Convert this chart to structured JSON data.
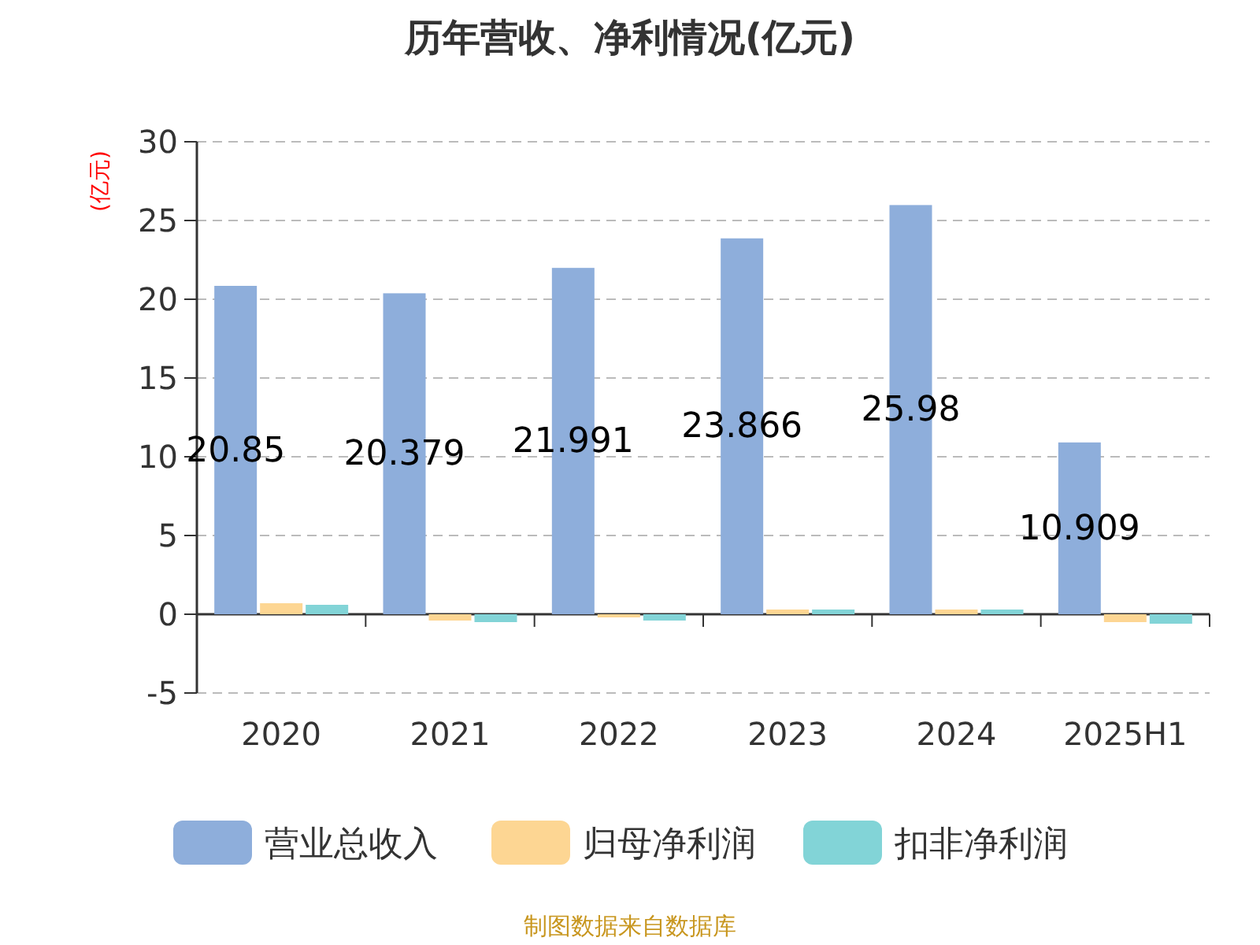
{
  "chart_data": {
    "type": "bar",
    "title": "历年营收、净利情况(亿元)",
    "ylabel": "(亿元)",
    "categories": [
      "2020",
      "2021",
      "2022",
      "2023",
      "2024",
      "2025H1"
    ],
    "series": [
      {
        "name": "营业总收入",
        "color": "#8eaedb",
        "values": [
          20.85,
          20.379,
          21.991,
          23.866,
          25.98,
          10.909
        ],
        "value_labels": [
          "20.85",
          "20.379",
          "21.991",
          "23.866",
          "25.98",
          "10.909"
        ]
      },
      {
        "name": "归母净利润",
        "color": "#fdd693",
        "values": [
          0.7,
          -0.4,
          -0.2,
          0.3,
          0.3,
          -0.5
        ]
      },
      {
        "name": "扣非净利润",
        "color": "#82d4d7",
        "values": [
          0.6,
          -0.5,
          -0.4,
          0.3,
          0.3,
          -0.6
        ]
      }
    ],
    "ylim": [
      -5,
      30
    ],
    "yticks": [
      -5,
      0,
      5,
      10,
      15,
      20,
      25,
      30
    ],
    "grid": "y",
    "legend": "bottom",
    "annotations": [
      "制图数据来自数据库"
    ]
  }
}
